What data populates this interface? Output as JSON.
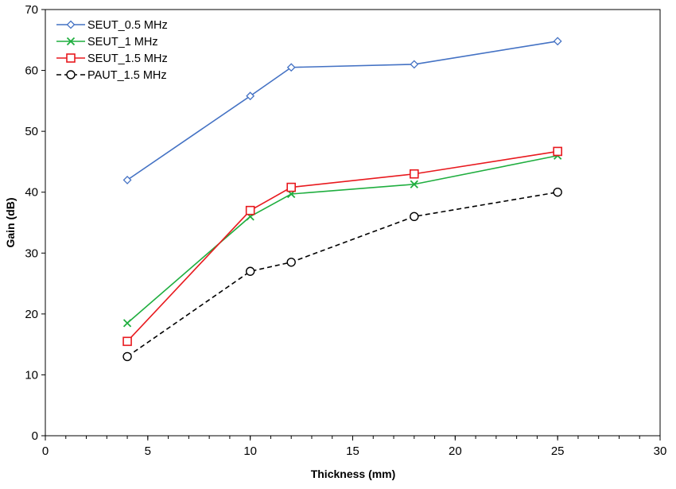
{
  "chart_data": {
    "type": "line",
    "xlabel": "Thickness (mm)",
    "ylabel": "Gain (dB)",
    "xlim": [
      0,
      30
    ],
    "ylim": [
      0,
      70
    ],
    "x_ticks": [
      0,
      5,
      10,
      15,
      20,
      25,
      30
    ],
    "y_ticks": [
      0,
      10,
      20,
      30,
      40,
      50,
      60,
      70
    ],
    "x_minor_step": 1,
    "grid": false,
    "legend_position": "top-left",
    "series": [
      {
        "name": "SEUT_0.5 MHz",
        "color": "#4472C4",
        "marker": "diamond",
        "line_style": "solid",
        "points": [
          {
            "x": 4,
            "y": 42.0
          },
          {
            "x": 10,
            "y": 55.8
          },
          {
            "x": 12,
            "y": 60.5
          },
          {
            "x": 18,
            "y": 61.0
          },
          {
            "x": 25,
            "y": 64.8
          }
        ]
      },
      {
        "name": "SEUT_1 MHz",
        "color": "#1FAE3F",
        "marker": "x",
        "line_style": "solid",
        "points": [
          {
            "x": 4,
            "y": 18.5
          },
          {
            "x": 10,
            "y": 36.0
          },
          {
            "x": 12,
            "y": 39.7
          },
          {
            "x": 18,
            "y": 41.3
          },
          {
            "x": 25,
            "y": 46.0
          }
        ]
      },
      {
        "name": "SEUT_1.5 MHz",
        "color": "#E8191E",
        "marker": "square",
        "line_style": "solid",
        "points": [
          {
            "x": 4,
            "y": 15.5
          },
          {
            "x": 10,
            "y": 37.0
          },
          {
            "x": 12,
            "y": 40.8
          },
          {
            "x": 18,
            "y": 43.0
          },
          {
            "x": 25,
            "y": 46.7
          }
        ]
      },
      {
        "name": "PAUT_1.5 MHz",
        "color": "#000000",
        "marker": "circle",
        "line_style": "dashed",
        "points": [
          {
            "x": 4,
            "y": 13.0
          },
          {
            "x": 10,
            "y": 27.0
          },
          {
            "x": 12,
            "y": 28.5
          },
          {
            "x": 18,
            "y": 36.0
          },
          {
            "x": 25,
            "y": 40.0
          }
        ]
      }
    ]
  }
}
